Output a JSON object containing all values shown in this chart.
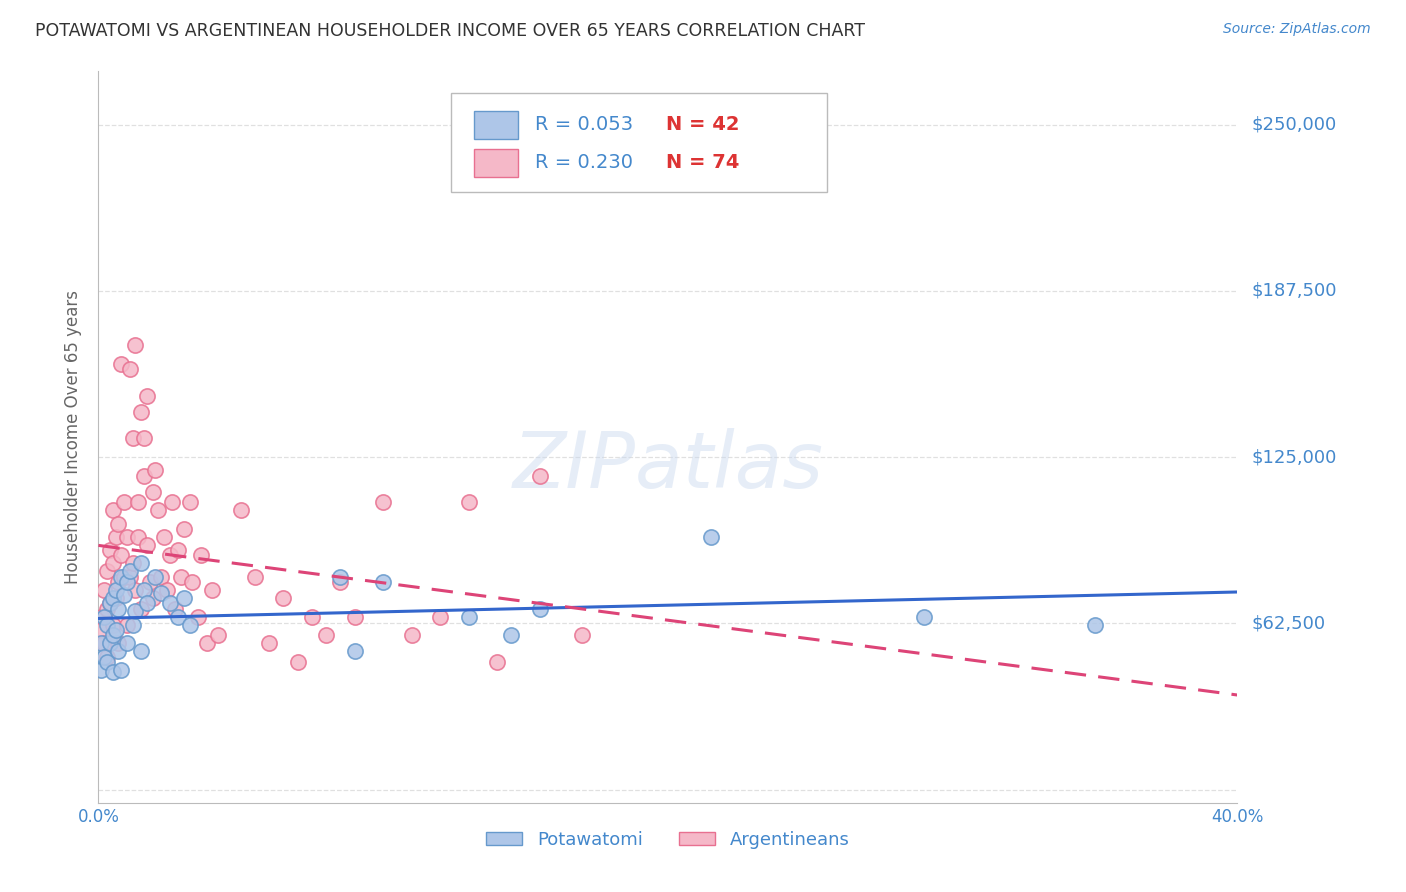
{
  "title": "POTAWATOMI VS ARGENTINEAN HOUSEHOLDER INCOME OVER 65 YEARS CORRELATION CHART",
  "source": "Source: ZipAtlas.com",
  "ylabel": "Householder Income Over 65 years",
  "xlim": [
    0.0,
    0.4
  ],
  "ylim": [
    -5000,
    270000
  ],
  "yticks": [
    0,
    62500,
    125000,
    187500,
    250000
  ],
  "ytick_labels": [
    "",
    "$62,500",
    "$125,000",
    "$187,500",
    "$250,000"
  ],
  "xticks": [
    0.0,
    0.05,
    0.1,
    0.15,
    0.2,
    0.25,
    0.3,
    0.35,
    0.4
  ],
  "xtick_labels": [
    "0.0%",
    "",
    "",
    "",
    "",
    "",
    "",
    "",
    "40.0%"
  ],
  "grid_color": "#dddddd",
  "watermark": "ZIPatlas",
  "watermark_color": "#c8d8ee",
  "potawatomi_color": "#aec6e8",
  "argentinean_color": "#f5b8c8",
  "potawatomi_edge": "#6699cc",
  "argentinean_edge": "#e87090",
  "trendline_potawatomi_color": "#3366cc",
  "trendline_argentinean_color": "#dd4477",
  "legend_r_color": "#3366bb",
  "legend_n_color": "#dd3333",
  "legend_r_potawatomi": "R = 0.053",
  "legend_n_potawatomi": "N = 42",
  "legend_r_argentinean": "R = 0.230",
  "legend_n_argentinean": "N = 74",
  "background_color": "#ffffff",
  "axis_label_color": "#666666",
  "tick_label_color": "#4488cc",
  "title_color": "#333333",
  "potawatomi_x": [
    0.001,
    0.001,
    0.002,
    0.002,
    0.003,
    0.003,
    0.004,
    0.004,
    0.005,
    0.005,
    0.005,
    0.006,
    0.006,
    0.007,
    0.007,
    0.008,
    0.008,
    0.009,
    0.01,
    0.01,
    0.011,
    0.012,
    0.013,
    0.015,
    0.015,
    0.016,
    0.017,
    0.02,
    0.022,
    0.025,
    0.028,
    0.03,
    0.032,
    0.085,
    0.09,
    0.1,
    0.13,
    0.145,
    0.155,
    0.215,
    0.29,
    0.35
  ],
  "potawatomi_y": [
    55000,
    45000,
    65000,
    50000,
    62000,
    48000,
    70000,
    55000,
    72000,
    58000,
    44000,
    75000,
    60000,
    68000,
    52000,
    80000,
    45000,
    73000,
    78000,
    55000,
    82000,
    62000,
    67000,
    85000,
    52000,
    75000,
    70000,
    80000,
    74000,
    70000,
    65000,
    72000,
    62000,
    80000,
    52000,
    78000,
    65000,
    58000,
    68000,
    95000,
    65000,
    62000
  ],
  "argentinean_x": [
    0.001,
    0.001,
    0.002,
    0.002,
    0.003,
    0.003,
    0.003,
    0.004,
    0.004,
    0.005,
    0.005,
    0.005,
    0.006,
    0.006,
    0.007,
    0.007,
    0.007,
    0.008,
    0.008,
    0.009,
    0.009,
    0.01,
    0.01,
    0.011,
    0.011,
    0.012,
    0.012,
    0.013,
    0.013,
    0.014,
    0.014,
    0.015,
    0.015,
    0.016,
    0.016,
    0.017,
    0.017,
    0.018,
    0.019,
    0.019,
    0.02,
    0.021,
    0.022,
    0.023,
    0.024,
    0.025,
    0.026,
    0.027,
    0.028,
    0.029,
    0.03,
    0.032,
    0.033,
    0.035,
    0.036,
    0.038,
    0.04,
    0.042,
    0.05,
    0.055,
    0.06,
    0.065,
    0.07,
    0.075,
    0.08,
    0.085,
    0.09,
    0.1,
    0.11,
    0.12,
    0.13,
    0.14,
    0.155,
    0.17
  ],
  "argentinean_y": [
    65000,
    60000,
    75000,
    55000,
    82000,
    68000,
    50000,
    90000,
    70000,
    85000,
    105000,
    62000,
    95000,
    72000,
    100000,
    78000,
    55000,
    88000,
    160000,
    80000,
    108000,
    95000,
    62000,
    158000,
    80000,
    132000,
    85000,
    167000,
    75000,
    95000,
    108000,
    142000,
    68000,
    132000,
    118000,
    92000,
    148000,
    78000,
    112000,
    72000,
    120000,
    105000,
    80000,
    95000,
    75000,
    88000,
    108000,
    68000,
    90000,
    80000,
    98000,
    108000,
    78000,
    65000,
    88000,
    55000,
    75000,
    58000,
    105000,
    80000,
    55000,
    72000,
    48000,
    65000,
    58000,
    78000,
    65000,
    108000,
    58000,
    65000,
    108000,
    48000,
    118000,
    58000
  ]
}
